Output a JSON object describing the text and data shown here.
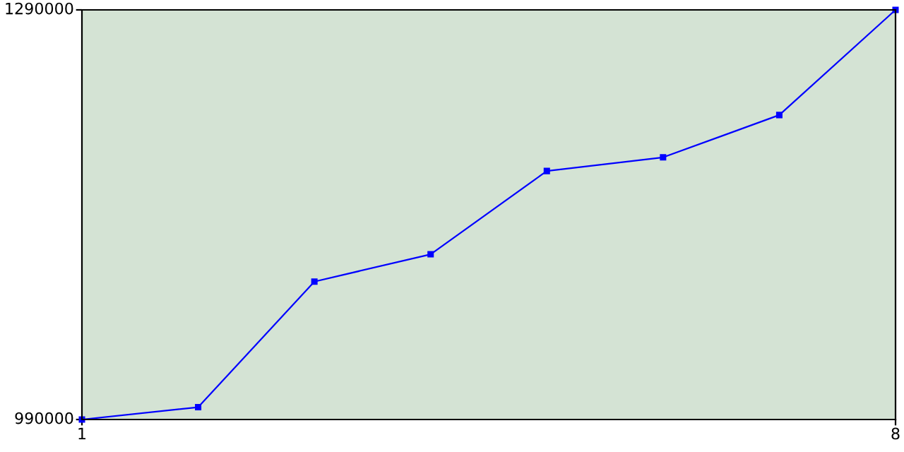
{
  "chart_data": {
    "type": "line",
    "x": [
      1,
      2,
      3,
      4,
      5,
      6,
      7,
      8
    ],
    "series": [
      {
        "color": "#0000ff",
        "values": [
          990000,
          999000,
          1091000,
          1111000,
          1172000,
          1182000,
          1213000,
          1290000
        ]
      }
    ],
    "xlim": [
      1,
      8
    ],
    "ylim": [
      990000,
      1290000
    ],
    "xticks": [
      1,
      8
    ],
    "yticks": [
      990000,
      1290000
    ],
    "grid": false,
    "marker": "square",
    "line_style": "solid"
  }
}
